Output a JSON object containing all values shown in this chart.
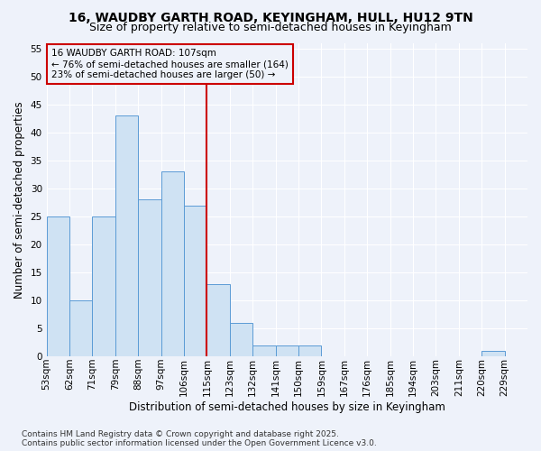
{
  "title": "16, WAUDBY GARTH ROAD, KEYINGHAM, HULL, HU12 9TN",
  "subtitle": "Size of property relative to semi-detached houses in Keyingham",
  "xlabel": "Distribution of semi-detached houses by size in Keyingham",
  "ylabel": "Number of semi-detached properties",
  "bin_labels": [
    "53sqm",
    "62sqm",
    "71sqm",
    "79sqm",
    "88sqm",
    "97sqm",
    "106sqm",
    "115sqm",
    "123sqm",
    "132sqm",
    "141sqm",
    "150sqm",
    "159sqm",
    "167sqm",
    "176sqm",
    "185sqm",
    "194sqm",
    "203sqm",
    "211sqm",
    "220sqm",
    "229sqm"
  ],
  "values": [
    25,
    10,
    25,
    43,
    28,
    33,
    27,
    13,
    6,
    2,
    2,
    2,
    0,
    0,
    0,
    0,
    0,
    0,
    0,
    1,
    0
  ],
  "bar_color": "#cfe2f3",
  "bar_edge_color": "#5b9bd5",
  "property_bin_index": 6,
  "vline_color": "#cc0000",
  "annotation_text": "16 WAUDBY GARTH ROAD: 107sqm\n← 76% of semi-detached houses are smaller (164)\n23% of semi-detached houses are larger (50) →",
  "annotation_box_color": "#cc0000",
  "background_color": "#eef2fa",
  "grid_color": "#ffffff",
  "ylim": [
    0,
    56
  ],
  "yticks": [
    0,
    5,
    10,
    15,
    20,
    25,
    30,
    35,
    40,
    45,
    50,
    55
  ],
  "footer": "Contains HM Land Registry data © Crown copyright and database right 2025.\nContains public sector information licensed under the Open Government Licence v3.0.",
  "title_fontsize": 10,
  "subtitle_fontsize": 9,
  "axis_label_fontsize": 8.5,
  "tick_fontsize": 7.5,
  "annotation_fontsize": 7.5,
  "footer_fontsize": 6.5
}
